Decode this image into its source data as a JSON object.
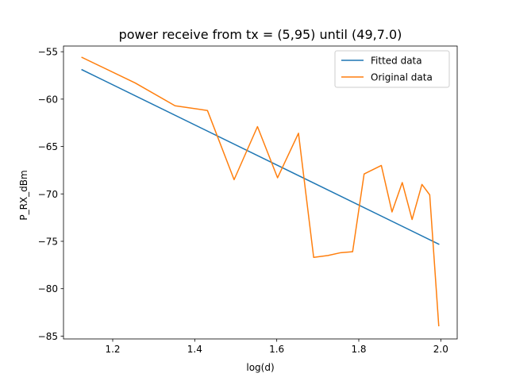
{
  "chart_data": {
    "type": "line",
    "title": "power receive  from tx = (5,95) until (49,7.0)",
    "xlabel": "log(d)",
    "ylabel": "P_RX_dBm",
    "xlim": [
      1.08,
      2.04
    ],
    "ylim": [
      -85.3,
      -54.4
    ],
    "xticks": [
      1.2,
      1.4,
      1.6,
      1.8,
      2.0
    ],
    "xtick_labels": [
      "1.2",
      "1.4",
      "1.6",
      "1.8",
      "2.0"
    ],
    "yticks": [
      -55,
      -60,
      -65,
      -70,
      -75,
      -80,
      -85
    ],
    "ytick_labels": [
      "−55",
      "−60",
      "−65",
      "−70",
      "−75",
      "−80",
      "−85"
    ],
    "grid": false,
    "legend_position": "top-right",
    "series": [
      {
        "name": "Fitted data",
        "color": "#1f77b4",
        "x": [
          1.125,
          1.995
        ],
        "y": [
          -56.9,
          -75.3
        ]
      },
      {
        "name": "Original data",
        "color": "#ff7f0e",
        "x": [
          1.125,
          1.255,
          1.352,
          1.431,
          1.496,
          1.553,
          1.602,
          1.653,
          1.69,
          1.725,
          1.756,
          1.785,
          1.813,
          1.855,
          1.881,
          1.906,
          1.93,
          1.954,
          1.973,
          1.995
        ],
        "y": [
          -55.6,
          -58.3,
          -60.7,
          -61.2,
          -68.5,
          -62.9,
          -68.3,
          -63.6,
          -76.7,
          -76.5,
          -76.2,
          -76.1,
          -67.9,
          -67.0,
          -71.9,
          -68.8,
          -72.7,
          -69.0,
          -70.1,
          -83.9
        ]
      }
    ]
  }
}
